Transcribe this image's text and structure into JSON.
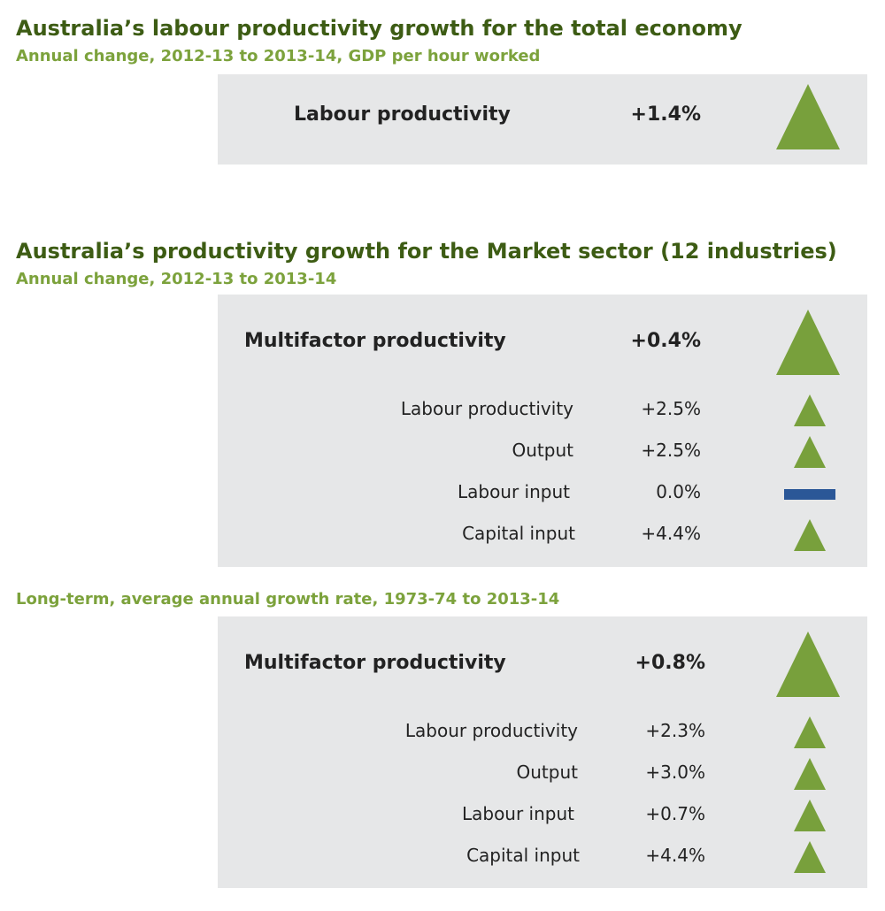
{
  "colors": {
    "heading": "#3d5c14",
    "subheading": "#7ca23c",
    "panel": "#e6e7e8",
    "increase": "#78a03c",
    "nochange": "#2b5797"
  },
  "section1": {
    "title": "Australia’s labour productivity growth for the total economy",
    "subtitle": "Annual change, 2012-13 to 2013-14, GDP per hour worked",
    "main": {
      "label": "Labour productivity",
      "value": "+1.4%",
      "indicator": "triangle-up-icon"
    }
  },
  "section2": {
    "title": "Australia’s productivity growth for the Market sector (12 industries)",
    "subtitle": "Annual change, 2012-13 to 2013-14",
    "main": {
      "label": "Multifactor productivity",
      "value": "+0.4%",
      "indicator": "triangle-up-icon"
    },
    "items": [
      {
        "label": "Labour productivity",
        "value": "+2.5%",
        "indicator": "triangle-up-icon"
      },
      {
        "label": "Output",
        "value": "+2.5%",
        "indicator": "triangle-up-icon"
      },
      {
        "label": "Labour input",
        "value": "0.0%",
        "indicator": "dash-icon"
      },
      {
        "label": "Capital input",
        "value": "+4.4%",
        "indicator": "triangle-up-icon"
      }
    ]
  },
  "section3": {
    "subtitle": "Long-term, average annual growth rate, 1973-74 to 2013-14",
    "main": {
      "label": "Multifactor productivity",
      "value": "+0.8%",
      "indicator": "triangle-up-icon"
    },
    "items": [
      {
        "label": "Labour productivity",
        "value": "+2.3%",
        "indicator": "triangle-up-icon"
      },
      {
        "label": "Output",
        "value": "+3.0%",
        "indicator": "triangle-up-icon"
      },
      {
        "label": "Labour input",
        "value": "+0.7%",
        "indicator": "triangle-up-icon"
      },
      {
        "label": "Capital input",
        "value": "+4.4%",
        "indicator": "triangle-up-icon"
      }
    ]
  }
}
